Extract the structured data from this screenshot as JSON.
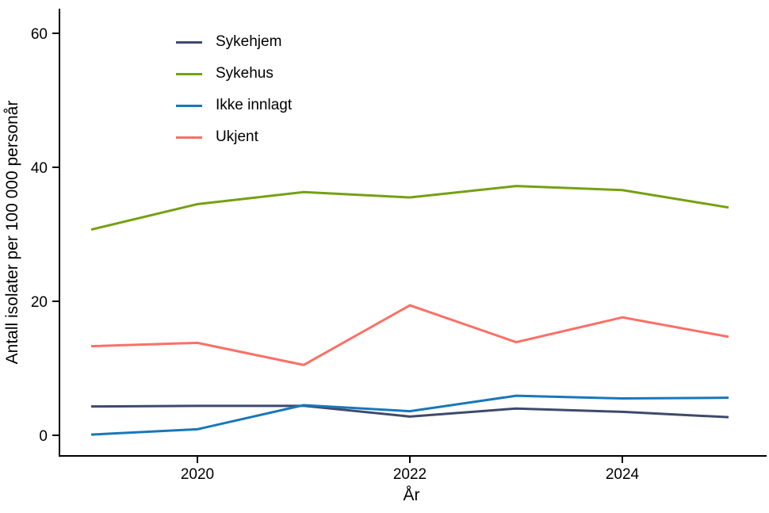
{
  "chart_data": {
    "type": "line",
    "title": "",
    "xlabel": "År",
    "ylabel": "Antall isolater per 100 000 personår",
    "x": [
      2019,
      2020,
      2021,
      2022,
      2023,
      2024,
      2025
    ],
    "series": [
      {
        "name": "Sykehjem",
        "color": "#3e4a6b",
        "values": [
          4.3,
          4.4,
          4.4,
          2.8,
          4.0,
          3.5,
          2.7
        ]
      },
      {
        "name": "Sykehus",
        "color": "#74a112",
        "values": [
          30.7,
          34.5,
          36.3,
          35.5,
          37.2,
          36.6,
          34.0
        ]
      },
      {
        "name": "Ikke innlagt",
        "color": "#1878b8",
        "values": [
          0.1,
          0.9,
          4.5,
          3.6,
          5.9,
          5.5,
          5.6
        ]
      },
      {
        "name": "Ukjent",
        "color": "#fa7066",
        "values": [
          13.3,
          13.8,
          10.5,
          19.4,
          13.9,
          17.6,
          14.7
        ]
      }
    ],
    "x_ticks": [
      2020,
      2022,
      2024
    ],
    "y_ticks": [
      0,
      20,
      40,
      60
    ],
    "xlim": [
      2018.7,
      2025.36
    ],
    "ylim": [
      0,
      63
    ],
    "grid": "off",
    "legend_position": "top-left-inside",
    "axis_color": "#000000",
    "background_color": "#ffffff"
  }
}
